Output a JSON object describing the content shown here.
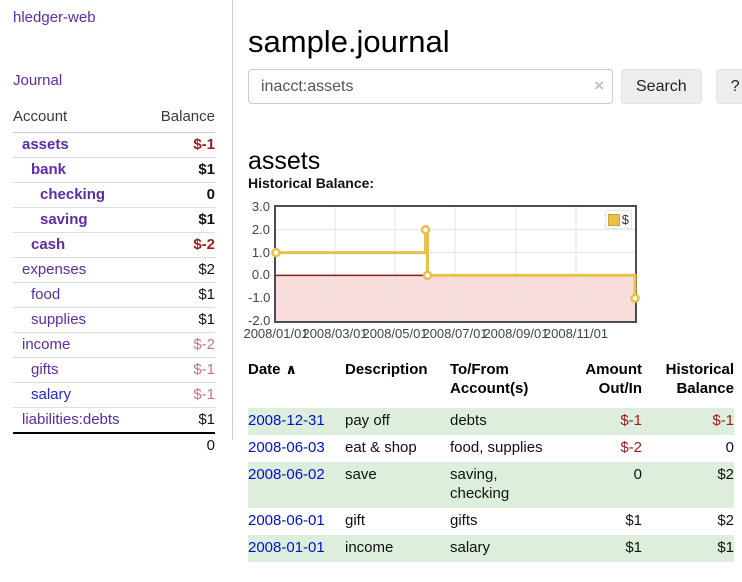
{
  "app": {
    "brand": "hledger-web",
    "nav": {
      "journal": "Journal"
    }
  },
  "colors": {
    "link_purple": "#5e2ca5",
    "link_blue": "#2727cc",
    "date_link_blue": "#0011cc",
    "negative_strong": "#9d1b1b",
    "negative_soft": "#c27b7b",
    "row_green": "#ddeedd"
  },
  "sidebar": {
    "table": {
      "account_header": "Account",
      "balance_header": "Balance",
      "rows": [
        {
          "account": "assets",
          "balance": "$-1",
          "level": 1,
          "bold": true,
          "negative": "strong"
        },
        {
          "account": "bank",
          "balance": "$1",
          "level": 2,
          "bold": true,
          "negative": "none"
        },
        {
          "account": "checking",
          "balance": "0",
          "level": 3,
          "bold": true,
          "negative": "none"
        },
        {
          "account": "saving",
          "balance": "$1",
          "level": 3,
          "bold": true,
          "negative": "none"
        },
        {
          "account": "cash",
          "balance": "$-2",
          "level": 2,
          "bold": true,
          "negative": "strong"
        },
        {
          "account": "expenses",
          "balance": "$2",
          "level": 1,
          "bold": false,
          "negative": "none"
        },
        {
          "account": "food",
          "balance": "$1",
          "level": 2,
          "bold": false,
          "negative": "none"
        },
        {
          "account": "supplies",
          "balance": "$1",
          "level": 2,
          "bold": false,
          "negative": "none"
        },
        {
          "account": "income",
          "balance": "$-2",
          "level": 1,
          "bold": false,
          "negative": "soft"
        },
        {
          "account": "gifts",
          "balance": "$-1",
          "level": 2,
          "bold": false,
          "negative": "soft"
        },
        {
          "account": "salary",
          "balance": "$-1",
          "level": 2,
          "bold": false,
          "negative": "soft"
        },
        {
          "account": "liabilities:debts",
          "balance": "$1",
          "level": 1,
          "bold": false,
          "negative": "none"
        }
      ],
      "total": "0"
    }
  },
  "main": {
    "title": "sample.journal",
    "search": {
      "value": "inacct:assets",
      "clear_icon": "×",
      "search_label": "Search",
      "help_label": "?"
    },
    "account_heading": "assets",
    "chart_label": "Historical Balance:"
  },
  "chart_data": {
    "type": "line",
    "step": true,
    "legend": "$",
    "x": [
      "2008-01-01",
      "2008-06-01",
      "2008-06-03",
      "2008-12-31"
    ],
    "values": [
      1,
      2,
      0,
      -1
    ],
    "x_ticks": [
      "2008/01/01",
      "2008/03/01",
      "2008/05/01",
      "2008/07/01",
      "2008/09/01",
      "2008/11/01"
    ],
    "y_ticks": [
      3.0,
      2.0,
      1.0,
      0.0,
      -1.0,
      -2.0
    ],
    "xlim": [
      "2008-01-01",
      "2008-12-31"
    ],
    "ylim": [
      -2,
      3
    ],
    "grid": true,
    "legend_position": "top-right",
    "line_color": "#e9c04a",
    "marker_fill": "#ffffff",
    "negative_region_color": "#f9dcdc",
    "zero_line_color": "#8b1a1a",
    "grid_color": "#e3e3e3"
  },
  "register": {
    "headers": {
      "date": "Date",
      "sort_icon": "∧",
      "description": "Description",
      "accounts_line1": "To/From",
      "accounts_line2": "Account(s)",
      "amount_line1": "Amount",
      "amount_line2": "Out/In",
      "balance_line1": "Historical",
      "balance_line2": "Balance"
    },
    "rows": [
      {
        "date": "2008-12-31",
        "description": "pay off",
        "accounts": "debts",
        "amount": "$-1",
        "balance": "$-1",
        "amount_negative": true,
        "balance_negative": true
      },
      {
        "date": "2008-06-03",
        "description": "eat & shop",
        "accounts": "food, supplies",
        "amount": "$-2",
        "balance": "0",
        "amount_negative": true,
        "balance_negative": false
      },
      {
        "date": "2008-06-02",
        "description": "save",
        "accounts": "saving, checking",
        "amount": "0",
        "balance": "$2",
        "amount_negative": false,
        "balance_negative": false
      },
      {
        "date": "2008-06-01",
        "description": "gift",
        "accounts": "gifts",
        "amount": "$1",
        "balance": "$2",
        "amount_negative": false,
        "balance_negative": false
      },
      {
        "date": "2008-01-01",
        "description": "income",
        "accounts": "salary",
        "amount": "$1",
        "balance": "$1",
        "amount_negative": false,
        "balance_negative": false
      }
    ]
  }
}
